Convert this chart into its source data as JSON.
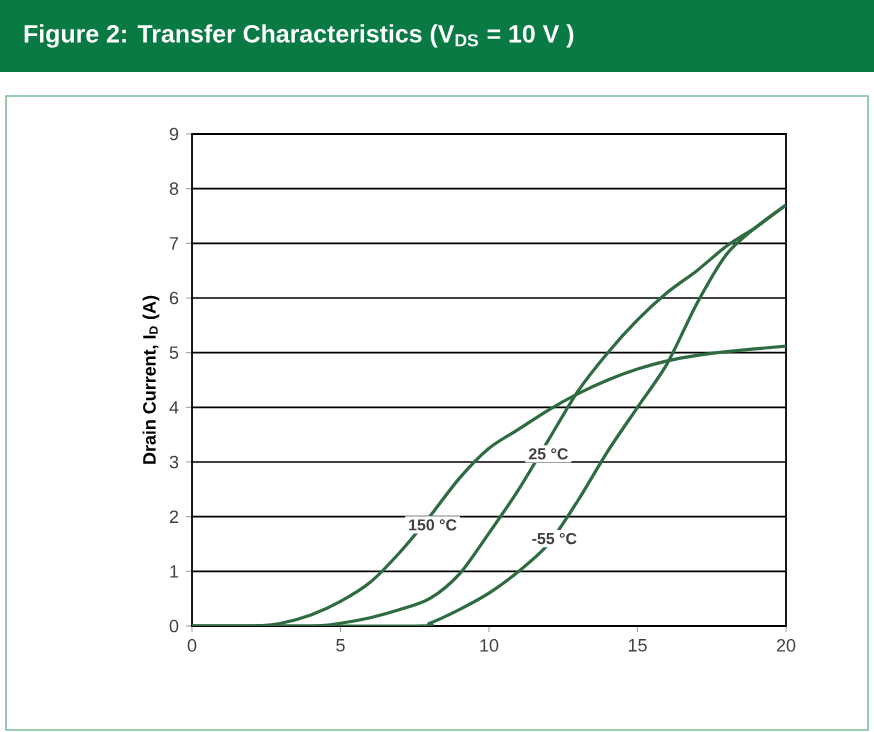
{
  "chart_data": {
    "type": "line",
    "title": "Figure 2: Transfer Characteristics (V$_{DS}$ = 10 V )",
    "ylabel": "Drain Current, I$_{D}$ (A)",
    "xlim": [
      0,
      20
    ],
    "ylim": [
      0,
      9
    ],
    "xticks": [
      0,
      5,
      10,
      15,
      20
    ],
    "yticks": [
      0,
      1,
      2,
      3,
      4,
      5,
      6,
      7,
      8,
      9
    ],
    "grid": "y",
    "marker": "none",
    "line_style": "solid",
    "series": [
      {
        "color": "#2f6b40",
        "x": [
          0,
          2,
          3,
          4,
          5,
          6,
          7,
          8,
          9,
          10,
          11,
          12,
          13,
          14,
          15,
          16,
          17,
          18,
          20
        ],
        "values": [
          0,
          0,
          0.05,
          0.2,
          0.45,
          0.8,
          1.35,
          2.0,
          2.7,
          3.25,
          3.6,
          3.95,
          4.25,
          4.5,
          4.7,
          4.85,
          4.95,
          5.02,
          5.12
        ]
      },
      {
        "color": "#2f6b40",
        "x": [
          0,
          4,
          5,
          6,
          7,
          8,
          9,
          10,
          11,
          12,
          13,
          14,
          15,
          16,
          17,
          18,
          19,
          20
        ],
        "values": [
          0,
          0,
          0.05,
          0.15,
          0.3,
          0.5,
          0.95,
          1.7,
          2.5,
          3.4,
          4.3,
          5.0,
          5.6,
          6.1,
          6.5,
          6.95,
          7.3,
          7.7
        ]
      },
      {
        "color": "#2f6b40",
        "x": [
          0,
          7.5,
          8,
          9,
          10,
          11,
          12,
          13,
          14,
          15,
          16,
          17,
          18,
          19,
          20
        ],
        "values": [
          0,
          0,
          0.05,
          0.3,
          0.6,
          1.0,
          1.5,
          2.3,
          3.2,
          4.0,
          4.8,
          5.9,
          6.8,
          7.3,
          7.7
        ]
      }
    ],
    "annotations": [
      {
        "text": "150 °C",
        "x": 8.1,
        "y": 1.85
      },
      {
        "text": "25 °C",
        "x": 12.0,
        "y": 3.15
      },
      {
        "text": "-55 °C",
        "x": 12.2,
        "y": 1.6
      }
    ]
  }
}
